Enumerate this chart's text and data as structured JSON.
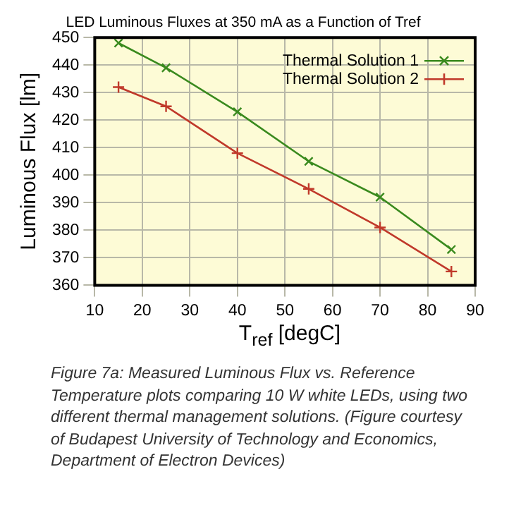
{
  "chart_data": {
    "type": "line",
    "title": "LED Luminous Fluxes at 350 mA as a Function of Tref",
    "xlabel": "T$_{ref}$ [degC]",
    "ylabel": "Luminous Flux [lm]",
    "x": [
      15,
      25,
      40,
      55,
      70,
      85
    ],
    "series": [
      {
        "name": "Thermal Solution 1",
        "color": "#3a8a1e",
        "values": [
          448,
          439,
          423,
          405,
          392,
          373
        ]
      },
      {
        "name": "Thermal Solution 2",
        "color": "#c0392a",
        "values": [
          432,
          425,
          408,
          395,
          381,
          365
        ]
      }
    ],
    "xlim": [
      10,
      90
    ],
    "xticks": [
      10,
      20,
      30,
      40,
      50,
      60,
      70,
      80,
      90
    ],
    "ylim": [
      360,
      450
    ],
    "yticks": [
      360,
      370,
      380,
      390,
      400,
      410,
      420,
      430,
      440,
      450
    ],
    "grid": true,
    "legend": "top right",
    "marker": "cross",
    "line_style": "solid",
    "annotations": [
      "Figure 7a: Measured Luminous Flux vs. Reference Temperature plots comparing 10 W white LEDs, using two different thermal management solutions. (Figure courtesy of Budapest University of Technology and Economics, Department of Electron Devices)"
    ]
  }
}
